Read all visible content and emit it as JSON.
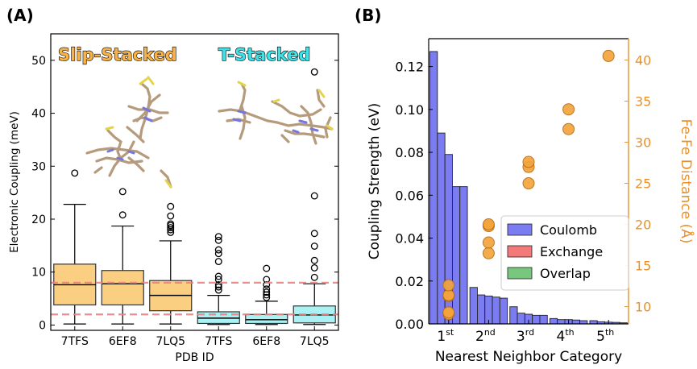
{
  "panel_a": {
    "letter": "(A)",
    "group_labels": [
      "Slip-Stacked",
      "T-Stacked"
    ],
    "group_label_colors": [
      "#f7b24a",
      "#3fe0e6"
    ]
  },
  "panel_b": {
    "letter": "(B)"
  },
  "chart_data": [
    {
      "type": "box",
      "title": "",
      "xlabel": "PDB ID",
      "ylabel": "Electronic Coupling (meV)",
      "ylim": [
        -1,
        55
      ],
      "yticks": [
        0,
        10,
        20,
        30,
        40,
        50
      ],
      "categories": [
        "7TFS",
        "6EF8",
        "7LQ5",
        "7TFS",
        "6EF8",
        "7LQ5"
      ],
      "groups": [
        "Slip-Stacked",
        "Slip-Stacked",
        "Slip-Stacked",
        "T-Stacked",
        "T-Stacked",
        "T-Stacked"
      ],
      "box_colors": [
        "#fbcf82",
        "#fbcf82",
        "#fbcf82",
        "#a9f1f3",
        "#a9f1f3",
        "#a9f1f3"
      ],
      "boxes": [
        {
          "whislo": 0.2,
          "q1": 3.8,
          "med": 7.6,
          "q3": 11.5,
          "whishi": 22.8,
          "fliers": [
            28.7
          ]
        },
        {
          "whislo": 0.2,
          "q1": 3.8,
          "med": 7.8,
          "q3": 10.3,
          "whishi": 18.7,
          "fliers": [
            20.8,
            25.2
          ]
        },
        {
          "whislo": 0.2,
          "q1": 2.7,
          "med": 5.6,
          "q3": 8.4,
          "whishi": 15.9,
          "fliers": [
            17.5,
            18.0,
            18.4,
            18.8,
            19.1,
            20.6,
            22.4
          ]
        },
        {
          "whislo": 0.1,
          "q1": 0.3,
          "med": 1.3,
          "q3": 2.5,
          "whishi": 5.6,
          "fliers": [
            6.6,
            7.2,
            7.6,
            8.6,
            9.2,
            12.0,
            13.5,
            14.2,
            16.0,
            16.7
          ]
        },
        {
          "whislo": 0.1,
          "q1": 0.3,
          "med": 1.0,
          "q3": 2.0,
          "whishi": 4.5,
          "fliers": [
            5.2,
            5.7,
            6.2,
            6.8,
            7.6,
            8.6,
            10.7
          ]
        },
        {
          "whislo": 0.1,
          "q1": 0.4,
          "med": 1.9,
          "q3": 3.6,
          "whishi": 7.8,
          "fliers": [
            9.0,
            10.8,
            12.2,
            14.9,
            17.3,
            24.4,
            47.8
          ]
        }
      ],
      "reference_lines": [
        {
          "y": 8.0,
          "color": "#f08080",
          "style": "dashed"
        },
        {
          "y": 2.0,
          "color": "#f08080",
          "style": "dashed"
        }
      ]
    },
    {
      "type": "bar",
      "title": "",
      "xlabel": "Nearest Neighbor Category",
      "ylabel": "Coupling Strength (eV)",
      "ylim": [
        0,
        0.133
      ],
      "yticks": [
        0.0,
        0.02,
        0.04,
        0.06,
        0.08,
        0.1,
        0.12
      ],
      "ytick_labels": [
        "0.00",
        "0.02",
        "0.04",
        "0.06",
        "0.08",
        "0.10",
        "0.12"
      ],
      "categories": [
        {
          "base": "1",
          "sup": "st"
        },
        {
          "base": "2",
          "sup": "nd"
        },
        {
          "base": "3",
          "sup": "rd"
        },
        {
          "base": "4",
          "sup": "th"
        },
        {
          "base": "5",
          "sup": "th"
        }
      ],
      "series": [
        {
          "name": "Coulomb",
          "color": "#7b7bf2",
          "values": [
            [
              0.127,
              0.089,
              0.079,
              0.064,
              0.064
            ],
            [
              0.017,
              0.0135,
              0.013,
              0.0125,
              0.012
            ],
            [
              0.008,
              0.005,
              0.0045,
              0.004,
              0.004
            ],
            [
              0.0025,
              0.002,
              0.002,
              0.0018,
              0.0015
            ],
            [
              0.0015,
              0.001,
              0.0008,
              0.0007,
              0.0005
            ]
          ]
        },
        {
          "name": "Exchange",
          "color": "#f47a7a",
          "values": [
            [
              0,
              0,
              0,
              0,
              0
            ],
            [
              0,
              0,
              0,
              0,
              0
            ],
            [
              0,
              0,
              0,
              0,
              0
            ],
            [
              0,
              0,
              0,
              0,
              0
            ],
            [
              0,
              0,
              0,
              0,
              0
            ]
          ]
        },
        {
          "name": "Overlap",
          "color": "#77c77d",
          "values": [
            [
              0,
              0,
              0,
              0,
              0
            ],
            [
              0,
              0,
              0,
              0,
              0
            ],
            [
              0,
              0,
              0,
              0,
              0
            ],
            [
              0,
              0,
              0,
              0,
              0
            ],
            [
              0,
              0,
              0,
              0,
              0
            ]
          ]
        }
      ],
      "legend": {
        "entries": [
          "Coulomb",
          "Exchange",
          "Overlap"
        ],
        "placement": "center-right"
      },
      "secondary_axis": {
        "label": "Fe-Fe Distance (Å)",
        "color": "#e8912b",
        "ylim": [
          7.9,
          42.6
        ],
        "yticks": [
          10,
          15,
          20,
          25,
          30,
          35,
          40
        ],
        "points": [
          {
            "category": 0,
            "values": [
              9.1,
              9.3,
              11.3,
              11.4,
              12.6
            ]
          },
          {
            "category": 1,
            "values": [
              16.5,
              17.8,
              19.8,
              20.0
            ]
          },
          {
            "category": 2,
            "values": [
              25.0,
              27.0,
              27.6
            ]
          },
          {
            "category": 3,
            "values": [
              31.6,
              34.0
            ]
          },
          {
            "category": 4,
            "values": [
              40.5
            ]
          }
        ]
      }
    }
  ]
}
